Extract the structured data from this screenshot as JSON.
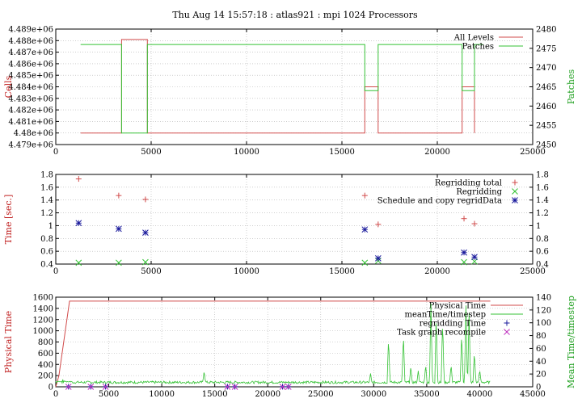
{
  "figure_title": "Thu Aug 14 15:57:18 : atlas921 : mpi 1024 Processors",
  "colors": {
    "red": "#d14b4b",
    "green": "#35c235",
    "blue": "#1a1a9c",
    "magenta": "#c030c0",
    "axis_red": "#c02020",
    "axis_green": "#20a020"
  },
  "chart_data": [
    {
      "type": "line",
      "ylabel_left": "Cells",
      "ylabel_right": "Patches",
      "xlim": [
        0,
        25000
      ],
      "ylim_left": [
        4479000,
        4489000
      ],
      "ylim_right": [
        2450,
        2480
      ],
      "xticks": [
        "0",
        "5000",
        "10000",
        "15000",
        "20000",
        "25000"
      ],
      "yticks_left": [
        "4.479e+06",
        "4.48e+06",
        "4.481e+06",
        "4.482e+06",
        "4.483e+06",
        "4.484e+06",
        "4.485e+06",
        "4.486e+06",
        "4.487e+06",
        "4.488e+06",
        "4.489e+06"
      ],
      "yticks_right": [
        "2450",
        "2455",
        "2460",
        "2465",
        "2470",
        "2475",
        "2480"
      ],
      "legend_position": "top-right",
      "grid": true,
      "series": [
        {
          "name": "All Levels",
          "axis": "left",
          "color": "#d14b4b",
          "x": [
            1300,
            3450,
            3450,
            4800,
            4800,
            16200,
            16200,
            16900,
            16900,
            21300,
            21300,
            21950,
            21950
          ],
          "y": [
            4480000,
            4480000,
            4488100,
            4488100,
            4480000,
            4480000,
            4484000,
            4484000,
            4480000,
            4480000,
            4484000,
            4484000,
            4480000
          ]
        },
        {
          "name": "Patches",
          "axis": "right",
          "color": "#35c235",
          "x": [
            1300,
            3450,
            3450,
            4800,
            4800,
            16200,
            16200,
            16900,
            16900,
            21300,
            21300,
            21950,
            21950,
            22400
          ],
          "y": [
            2476,
            2476,
            2453,
            2453,
            2476,
            2476,
            2464,
            2464,
            2476,
            2476,
            2464,
            2464,
            2476,
            2476
          ]
        }
      ]
    },
    {
      "type": "scatter",
      "ylabel_left": "Time [sec.]",
      "xlim": [
        0,
        25000
      ],
      "ylim": [
        0.4,
        1.8
      ],
      "xticks": [
        "0",
        "5000",
        "10000",
        "15000",
        "20000",
        "25000"
      ],
      "yticks": [
        "0.4",
        "0.6",
        "0.8",
        "1",
        "1.2",
        "1.4",
        "1.6",
        "1.8"
      ],
      "legend_position": "top-right",
      "grid": true,
      "series": [
        {
          "name": "Regridding total",
          "marker": "plus",
          "color": "#d14b4b",
          "x": [
            1200,
            3300,
            4700,
            16200,
            16900,
            21400,
            21950
          ],
          "y": [
            1.73,
            1.47,
            1.41,
            1.47,
            1.02,
            1.11,
            1.03
          ]
        },
        {
          "name": "Regridding",
          "marker": "cross",
          "color": "#35c235",
          "x": [
            1200,
            3300,
            4700,
            16200,
            16900,
            21400,
            21950
          ],
          "y": [
            0.42,
            0.42,
            0.43,
            0.42,
            0.45,
            0.43,
            0.44
          ]
        },
        {
          "name": "Schedule and copy regridData",
          "marker": "star",
          "color": "#1a1a9c",
          "x": [
            1200,
            3300,
            4700,
            16200,
            16900,
            21400,
            21950
          ],
          "y": [
            1.04,
            0.95,
            0.89,
            0.94,
            0.49,
            0.58,
            0.51
          ]
        }
      ]
    },
    {
      "type": "line",
      "ylabel_left": "Physical Time",
      "ylabel_right": "Mean Time/timestep",
      "xlim": [
        0,
        45000
      ],
      "ylim_left": [
        0,
        1600
      ],
      "ylim_right": [
        0,
        140
      ],
      "xticks": [
        "0",
        "5000",
        "10000",
        "15000",
        "20000",
        "25000",
        "30000",
        "35000",
        "40000",
        "45000"
      ],
      "yticks_left": [
        "0",
        "200",
        "400",
        "600",
        "800",
        "1000",
        "1200",
        "1400",
        "1600"
      ],
      "yticks_right": [
        "0",
        "20",
        "40",
        "60",
        "80",
        "100",
        "120",
        "140"
      ],
      "legend_position": "top-right",
      "grid": true,
      "series": [
        {
          "name": "Physical Time",
          "axis": "left",
          "color": "#d14b4b",
          "x": [
            0,
            300,
            1300,
            41000
          ],
          "y": [
            0,
            200,
            1530,
            1530
          ]
        },
        {
          "name": "meanTime/timestep",
          "axis": "right",
          "color": "#35c235",
          "spikes": [
            [
              14000,
              20
            ],
            [
              29700,
              16
            ],
            [
              31400,
              72
            ],
            [
              32800,
              78
            ],
            [
              33500,
              28
            ],
            [
              34200,
              20
            ],
            [
              34900,
              30
            ],
            [
              35400,
              125
            ],
            [
              35900,
              110
            ],
            [
              36500,
              100
            ],
            [
              37300,
              30
            ],
            [
              38300,
              80
            ],
            [
              38700,
              122
            ],
            [
              39000,
              110
            ],
            [
              39500,
              50
            ],
            [
              40000,
              22
            ]
          ],
          "baseline": [
            5,
            9
          ]
        },
        {
          "name": "regridding Time",
          "axis": "left",
          "marker": "plus",
          "color": "#1a1a9c",
          "x": [
            1200,
            3300,
            4700,
            16200,
            16900,
            21400,
            21950
          ],
          "y": [
            2,
            2,
            2,
            2,
            2,
            2,
            2
          ]
        },
        {
          "name": "Task graph recompile",
          "axis": "left",
          "marker": "cross",
          "color": "#c030c0",
          "x": [
            1200,
            3300,
            4700,
            16200,
            16900,
            21400,
            21950
          ],
          "y": [
            0,
            0,
            0,
            0,
            0,
            0,
            0
          ]
        }
      ]
    }
  ]
}
